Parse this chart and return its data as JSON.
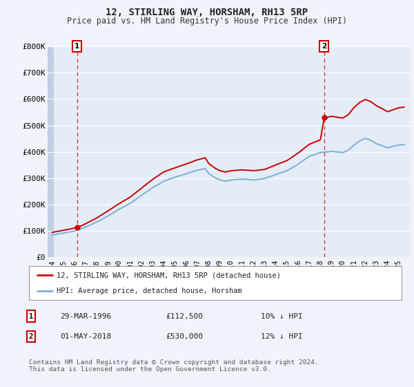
{
  "title": "12, STIRLING WAY, HORSHAM, RH13 5RP",
  "subtitle": "Price paid vs. HM Land Registry's House Price Index (HPI)",
  "ylim": [
    0,
    800000
  ],
  "yticks": [
    0,
    100000,
    200000,
    300000,
    400000,
    500000,
    600000,
    700000,
    800000
  ],
  "ytick_labels": [
    "£0",
    "£100K",
    "£200K",
    "£300K",
    "£400K",
    "£500K",
    "£600K",
    "£700K",
    "£800K"
  ],
  "xlim_start": 1993.6,
  "xlim_end": 2026.0,
  "sale1_date_x": 1996.24,
  "sale1_price": 112500,
  "sale2_date_x": 2018.33,
  "sale2_price": 530000,
  "red_line_color": "#cc0000",
  "blue_line_color": "#7bafd4",
  "bg_color": "#f0f4fa",
  "plot_bg": "#e4ecf7",
  "grid_color": "#ffffff",
  "vline_color": "#cc0000",
  "marker_color": "#cc0000",
  "legend_label_red": "12, STIRLING WAY, HORSHAM, RH13 5RP (detached house)",
  "legend_label_blue": "HPI: Average price, detached house, Horsham",
  "table_row1": [
    "1",
    "29-MAR-1996",
    "£112,500",
    "10% ↓ HPI"
  ],
  "table_row2": [
    "2",
    "01-MAY-2018",
    "£530,000",
    "12% ↓ HPI"
  ],
  "footer": "Contains HM Land Registry data © Crown copyright and database right 2024.\nThis data is licensed under the Open Government Licence v3.0.",
  "title_fontsize": 10,
  "subtitle_fontsize": 8.5,
  "hpi_knots_x": [
    1994,
    1995,
    1996,
    1997,
    1998,
    1999,
    2000,
    2001,
    2002,
    2003,
    2004,
    2005,
    2006,
    2007,
    2007.7,
    2008,
    2008.5,
    2009,
    2009.5,
    2010,
    2011,
    2012,
    2013,
    2014,
    2015,
    2016,
    2017,
    2018,
    2019,
    2020,
    2020.5,
    2021,
    2021.5,
    2022,
    2022.5,
    2023,
    2023.5,
    2024,
    2024.5,
    2025,
    2025.5
  ],
  "hpi_knots_y": [
    85000,
    92000,
    100000,
    115000,
    135000,
    158000,
    183000,
    205000,
    235000,
    265000,
    290000,
    305000,
    318000,
    332000,
    338000,
    320000,
    305000,
    295000,
    290000,
    295000,
    298000,
    295000,
    300000,
    315000,
    330000,
    355000,
    385000,
    400000,
    405000,
    400000,
    410000,
    430000,
    445000,
    455000,
    448000,
    435000,
    428000,
    420000,
    425000,
    430000,
    432000
  ],
  "red_knots_x": [
    1994,
    1995,
    1996.0,
    1996.24,
    1997,
    1998,
    1999,
    2000,
    2001,
    2002,
    2003,
    2004,
    2005,
    2006,
    2007,
    2007.7,
    2008,
    2008.5,
    2009,
    2009.5,
    2010,
    2011,
    2012,
    2013,
    2014,
    2015,
    2016,
    2017,
    2018.0,
    2018.33,
    2019,
    2020,
    2020.5,
    2021,
    2021.5,
    2022,
    2022.5,
    2023,
    2023.5,
    2024,
    2024.5,
    2025,
    2025.5
  ],
  "red_knots_y": [
    95000,
    103000,
    112000,
    112500,
    129000,
    151000,
    177000,
    204000,
    229000,
    263000,
    296000,
    324000,
    340000,
    355000,
    371000,
    378000,
    357000,
    341000,
    330000,
    325000,
    330000,
    333000,
    330000,
    335000,
    352000,
    369000,
    397000,
    430000,
    448000,
    530000,
    537000,
    530000,
    543000,
    570000,
    589000,
    600000,
    592000,
    576000,
    565000,
    553000,
    560000,
    567000,
    570000
  ]
}
